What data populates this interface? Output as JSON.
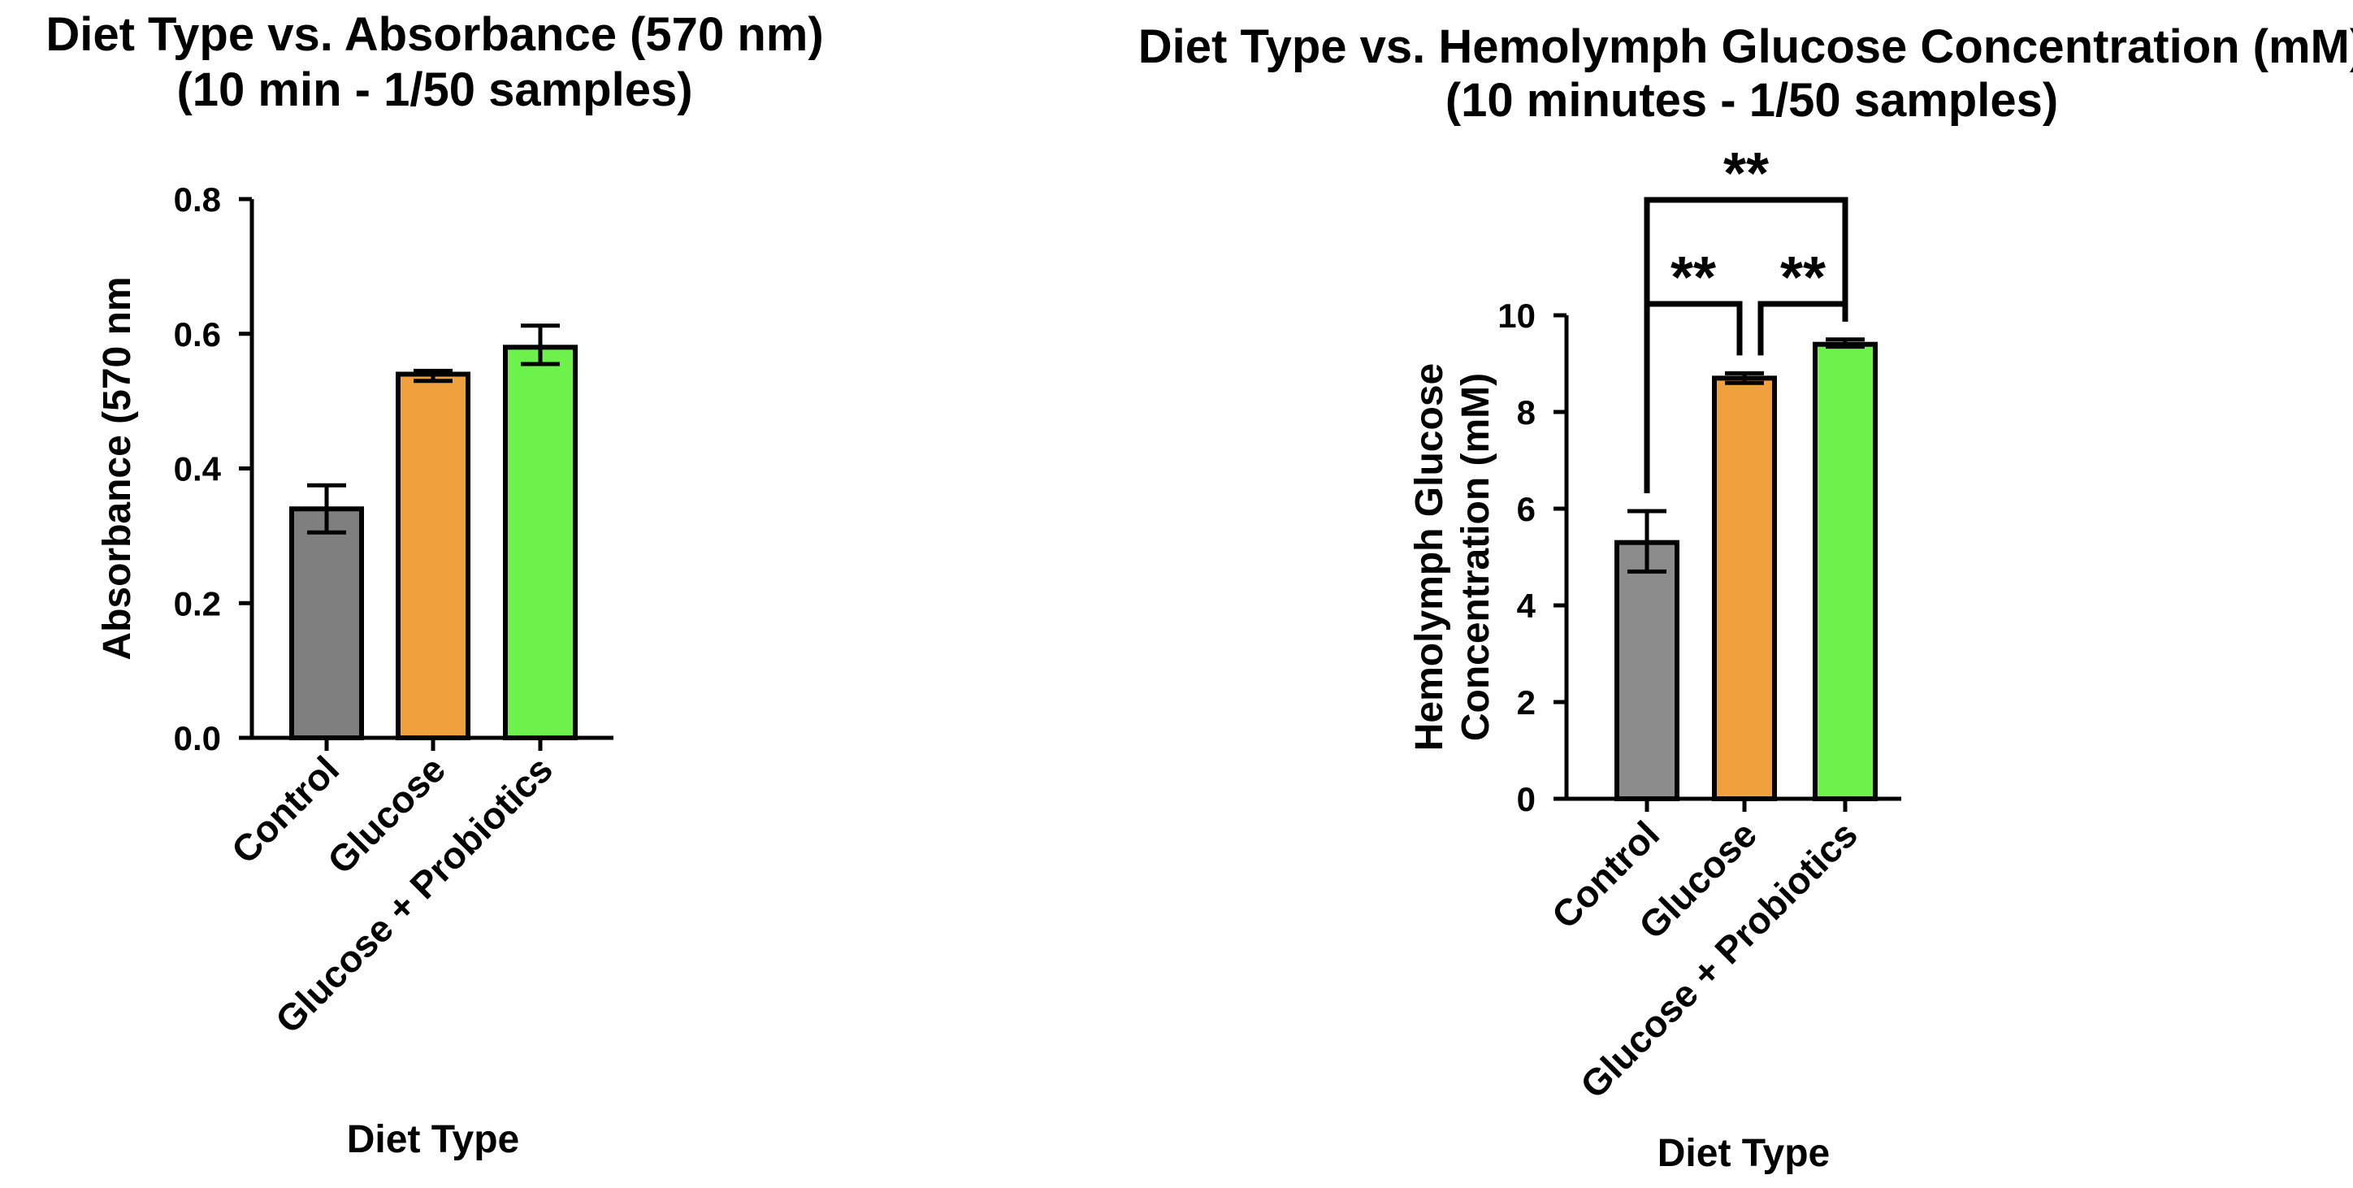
{
  "chart_data": [
    {
      "type": "bar",
      "title_lines": [
        "Diet Type vs. Absorbance (570 nm)",
        "(10 min - 1/50 samples)"
      ],
      "xlabel": "Diet Type",
      "ylabel": "Absorbance (570 nm",
      "ylim": [
        0,
        0.8
      ],
      "yticks": [
        "0.0",
        "0.2",
        "0.4",
        "0.6",
        "0.8"
      ],
      "categories": [
        "Control",
        "Glucose",
        "Glucose + Probiotics"
      ],
      "values": [
        0.34,
        0.54,
        0.58
      ],
      "error_low": [
        0.305,
        0.53,
        0.555
      ],
      "error_high": [
        0.375,
        0.545,
        0.612
      ],
      "colors": [
        "#7f7f7f",
        "#f0a03c",
        "#6cf24a"
      ],
      "grid": false,
      "significance": []
    },
    {
      "type": "bar",
      "title_lines": [
        "Diet Type vs. Hemolymph Glucose Concentration (mM)",
        "(10 minutes - 1/50 samples)"
      ],
      "xlabel": "Diet Type",
      "ylabel_lines": [
        "Hemolymph Glucose",
        "Concentration (mM)"
      ],
      "ylim": [
        0,
        10
      ],
      "yticks": [
        "0",
        "2",
        "4",
        "6",
        "8",
        "10"
      ],
      "categories": [
        "Control",
        "Glucose",
        "Glucose + Probiotics"
      ],
      "values": [
        5.3,
        8.7,
        9.4
      ],
      "error_low": [
        4.7,
        8.6,
        9.35
      ],
      "error_high": [
        5.95,
        8.8,
        9.5
      ],
      "colors": [
        "#8c8c8c",
        "#f0a03c",
        "#6cf24a"
      ],
      "grid": false,
      "significance": [
        {
          "from": 0,
          "to": 1,
          "label": "**"
        },
        {
          "from": 1,
          "to": 2,
          "label": "**"
        },
        {
          "from": 0,
          "to": 2,
          "label": "**"
        }
      ]
    }
  ]
}
